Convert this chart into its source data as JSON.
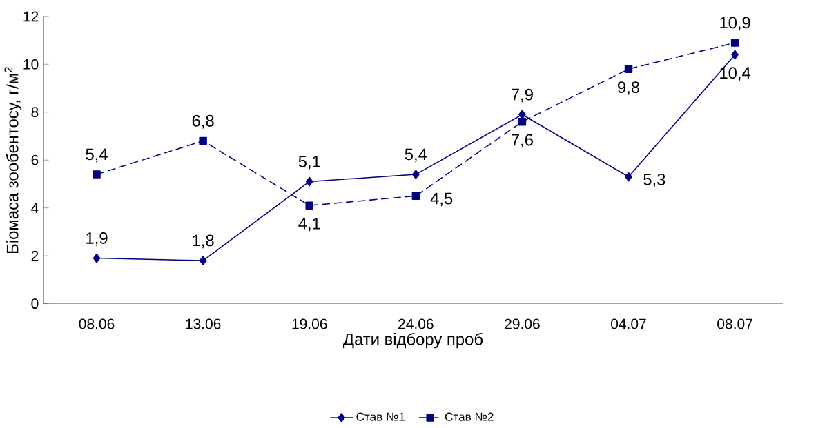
{
  "chart_data": {
    "type": "line",
    "xlabel": "Дати відбору проб",
    "ylabel": "Біомаса зообентосу, г/м$^{2}$",
    "categories": [
      "08.06",
      "13.06",
      "19.06",
      "24.06",
      "29.06",
      "04.07",
      "08.07"
    ],
    "ylim": [
      0,
      12
    ],
    "yticks": [
      0,
      2,
      4,
      6,
      8,
      10,
      12
    ],
    "legend": "bottom",
    "series": [
      {
        "name": "Став №1",
        "color": "#000080",
        "marker": "diamond",
        "line_style": "solid",
        "values": [
          1.9,
          1.8,
          5.1,
          5.4,
          7.9,
          5.3,
          10.4
        ],
        "value_labels": [
          "1,9",
          "1,8",
          "5,1",
          "5,4",
          "7,9",
          "5,3",
          "10,4"
        ]
      },
      {
        "name": "Став №2",
        "color": "#000080",
        "marker": "square",
        "line_style": "dashed",
        "values": [
          5.4,
          6.8,
          4.1,
          4.5,
          7.6,
          9.8,
          10.9
        ],
        "value_labels": [
          "5,4",
          "6,8",
          "4,1",
          "4,5",
          "7,6",
          "9,8",
          "10,9"
        ]
      }
    ]
  }
}
